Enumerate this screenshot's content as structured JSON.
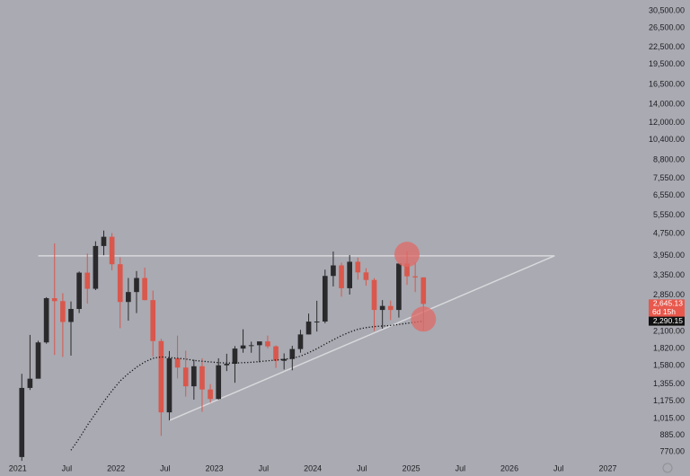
{
  "chart_data": {
    "type": "candlestick",
    "log_scale": true,
    "grid": false,
    "background": "#a9aab2",
    "up_color": "#2a2a2c",
    "down_color": "#d9574c",
    "x": [
      "2021-01",
      "2021-02",
      "2021-03",
      "2021-04",
      "2021-05",
      "2021-06",
      "2021-07",
      "2021-08",
      "2021-09",
      "2021-10",
      "2021-11",
      "2021-12",
      "2022-01",
      "2022-02",
      "2022-03",
      "2022-04",
      "2022-05",
      "2022-06",
      "2022-07",
      "2022-08",
      "2022-09",
      "2022-10",
      "2022-11",
      "2022-12",
      "2023-01",
      "2023-02",
      "2023-03",
      "2023-04",
      "2023-05",
      "2023-06",
      "2023-07",
      "2023-08",
      "2023-09",
      "2023-10",
      "2023-11",
      "2023-12",
      "2024-01",
      "2024-02",
      "2024-03",
      "2024-04",
      "2024-05",
      "2024-06",
      "2024-07",
      "2024-08",
      "2024-09",
      "2024-10",
      "2024-11",
      "2024-12",
      "2025-01",
      "2025-02"
    ],
    "open": [
      737,
      1312,
      1417,
      1918,
      2774,
      2707,
      2275,
      2536,
      3433,
      3001,
      4288,
      4631,
      3683,
      2688,
      2920,
      3283,
      2730,
      1940,
      1070,
      1680,
      1555,
      1330,
      1572,
      1295,
      1196,
      1585,
      1605,
      1822,
      1870,
      1874,
      1934,
      1856,
      1646,
      1671,
      1815,
      2050,
      2282,
      2283,
      3340,
      3647,
      3015,
      3760,
      3440,
      3230,
      2515,
      2600,
      2515,
      3705,
      3330,
      3300
    ],
    "high": [
      1476,
      2042,
      1944,
      2797,
      4380,
      2891,
      2700,
      3466,
      4027,
      4460,
      4878,
      4778,
      3900,
      3283,
      3480,
      3580,
      2955,
      1975,
      1785,
      2030,
      1790,
      1660,
      1680,
      1355,
      1680,
      1745,
      1860,
      2140,
      1930,
      1930,
      2030,
      1870,
      1750,
      1865,
      2130,
      2440,
      2715,
      3520,
      4095,
      3730,
      3975,
      3890,
      3560,
      3280,
      2730,
      2720,
      3690,
      4110,
      3745,
      3300
    ],
    "low": [
      714,
      1290,
      1441,
      1898,
      1728,
      1700,
      1718,
      2451,
      2651,
      2968,
      3970,
      3503,
      2160,
      2300,
      2450,
      2725,
      1705,
      880,
      1000,
      1420,
      1220,
      1190,
      1075,
      1160,
      1190,
      1510,
      1370,
      1760,
      1760,
      1625,
      1825,
      1550,
      1530,
      1520,
      1760,
      2050,
      2100,
      2250,
      3060,
      2810,
      2860,
      3240,
      3080,
      2110,
      2150,
      2310,
      2360,
      3100,
      2920,
      2120
    ],
    "close": [
      1312,
      1417,
      1918,
      2774,
      2707,
      2275,
      2536,
      3433,
      3001,
      4288,
      4631,
      3683,
      2688,
      2920,
      3283,
      2730,
      1940,
      1070,
      1680,
      1555,
      1330,
      1572,
      1295,
      1196,
      1585,
      1605,
      1822,
      1870,
      1874,
      1934,
      1856,
      1646,
      1671,
      1815,
      2050,
      2282,
      2283,
      3340,
      3647,
      3015,
      3760,
      3440,
      3230,
      2515,
      2600,
      2515,
      3705,
      3330,
      3300,
      2645.13
    ],
    "moving_average": {
      "color": "#111111",
      "values": [
        null,
        null,
        null,
        null,
        null,
        null,
        780,
        860,
        960,
        1060,
        1170,
        1280,
        1390,
        1480,
        1560,
        1630,
        1680,
        1700,
        1690,
        1680,
        1670,
        1650,
        1640,
        1630,
        1620,
        1615,
        1615,
        1620,
        1625,
        1635,
        1645,
        1655,
        1665,
        1680,
        1710,
        1760,
        1820,
        1890,
        1960,
        2030,
        2090,
        2140,
        2170,
        2190,
        2200,
        2210,
        2230,
        2250,
        2270,
        2290.15
      ]
    },
    "trendlines": [
      {
        "color": "#d8d8dc",
        "x": [
          "2021-03",
          "2026-06"
        ],
        "values": [
          3950,
          3950
        ]
      },
      {
        "color": "#d8d8dc",
        "x": [
          "2022-07",
          "2026-06"
        ],
        "values": [
          1000,
          3950
        ]
      }
    ],
    "highlights": [
      {
        "color": "#e06a66",
        "x": "2024-12",
        "value": 4000
      },
      {
        "color": "#e06a66",
        "x": "2025-02",
        "value": 2330
      }
    ],
    "price_labels": [
      {
        "value": 2645.13,
        "label": "2,645.13",
        "countdown": "6d 15h",
        "color": "#e8584c"
      },
      {
        "value": 2290.15,
        "label": "2,290.15",
        "color": "#111111"
      }
    ],
    "xlim": [
      2020.82,
      2027.26
    ],
    "ylim": [
      720,
      33400
    ],
    "xticks": [
      2021,
      {
        "value": 2021.5,
        "label": "Jul"
      },
      2022,
      {
        "value": 2022.5,
        "label": "Jul"
      },
      2023,
      {
        "value": 2023.5,
        "label": "Jul"
      },
      2024,
      {
        "value": 2024.5,
        "label": "Jul"
      },
      2025,
      {
        "value": 2025.5,
        "label": "Jul"
      },
      2026,
      {
        "value": 2026.5,
        "label": "Jul"
      },
      2027
    ],
    "yticks": [
      {
        "value": 30500,
        "label": "30,500.00"
      },
      {
        "value": 26500,
        "label": "26,500.00"
      },
      {
        "value": 22500,
        "label": "22,500.00"
      },
      {
        "value": 19500,
        "label": "19,500.00"
      },
      {
        "value": 16500,
        "label": "16,500.00"
      },
      {
        "value": 14000,
        "label": "14,000.00"
      },
      {
        "value": 12000,
        "label": "12,000.00"
      },
      {
        "value": 10400,
        "label": "10,400.00"
      },
      {
        "value": 8800,
        "label": "8,800.00"
      },
      {
        "value": 7550,
        "label": "7,550.00"
      },
      {
        "value": 6550,
        "label": "6,550.00"
      },
      {
        "value": 5550,
        "label": "5,550.00"
      },
      {
        "value": 4750,
        "label": "4,750.00"
      },
      {
        "value": 3950,
        "label": "3,950.00"
      },
      {
        "value": 3350,
        "label": "3,350.00"
      },
      {
        "value": 2850,
        "label": "2,850.00"
      },
      {
        "value": 2100,
        "label": "2,100.00"
      },
      {
        "value": 1820,
        "label": "1,820.00"
      },
      {
        "value": 1580,
        "label": "1,580.00"
      },
      {
        "value": 1355,
        "label": "1,355.00"
      },
      {
        "value": 1175,
        "label": "1,175.00"
      },
      {
        "value": 1015,
        "label": "1,015.00"
      },
      {
        "value": 885,
        "label": "885.00"
      },
      {
        "value": 770,
        "label": "770.00"
      }
    ]
  }
}
